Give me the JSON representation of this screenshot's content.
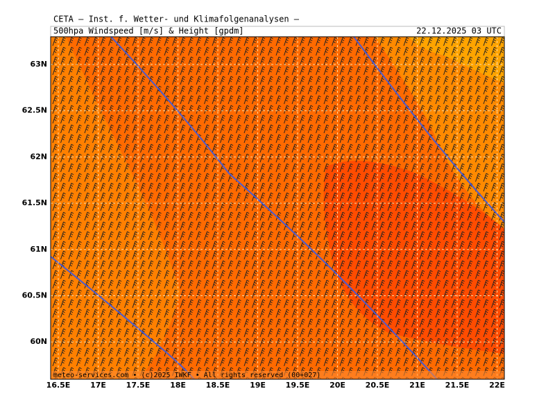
{
  "header": {
    "title": "CETA – Inst. f. Wetter- und Klimafolgenanalysen –",
    "subtitle": "500hpa Windspeed [m/s] & Height [gpdm]",
    "datetime": "22.12.2025 03 UTC"
  },
  "map": {
    "lat_labels": [
      "63N",
      "62.5N",
      "62N",
      "61.5N",
      "61N",
      "60.5N",
      "60N"
    ],
    "lon_labels": [
      "16.5E",
      "17E",
      "17.5E",
      "18E",
      "18.5E",
      "19E",
      "19.5E",
      "20E",
      "20.5E",
      "21E",
      "21.5E",
      "22E"
    ],
    "footer": "meteo-services.com • (c)2025 IWKF • All rights reserved (00+027)"
  }
}
